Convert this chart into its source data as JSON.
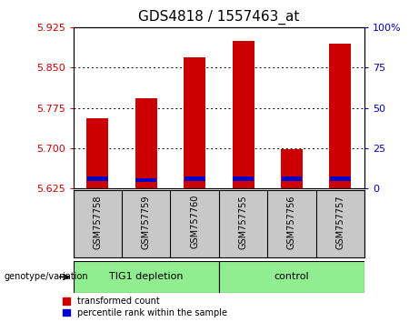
{
  "title": "GDS4818 / 1557463_at",
  "samples": [
    "GSM757758",
    "GSM757759",
    "GSM757760",
    "GSM757755",
    "GSM757756",
    "GSM757757"
  ],
  "transformed_count": [
    5.755,
    5.793,
    5.869,
    5.9,
    5.698,
    5.895
  ],
  "blue_marker_value": [
    5.643,
    5.641,
    5.643,
    5.643,
    5.643,
    5.643
  ],
  "bar_bottom": 5.625,
  "ylim": [
    5.625,
    5.925
  ],
  "yticks": [
    5.625,
    5.7,
    5.775,
    5.85,
    5.925
  ],
  "right_yticks": [
    0,
    25,
    50,
    75,
    100
  ],
  "bar_color": "#cc0000",
  "blue_color": "#0000cc",
  "group_green": "#90ee90",
  "sample_box_gray": "#c8c8c8",
  "group_label": "genotype/variation",
  "group1_label": "TIG1 depletion",
  "group2_label": "control",
  "legend_items": [
    "transformed count",
    "percentile rank within the sample"
  ],
  "ylabel_color": "#cc0000",
  "right_ylabel_color": "#0000bb",
  "title_fontsize": 11,
  "tick_fontsize": 8,
  "label_fontsize": 8,
  "bar_width": 0.45
}
